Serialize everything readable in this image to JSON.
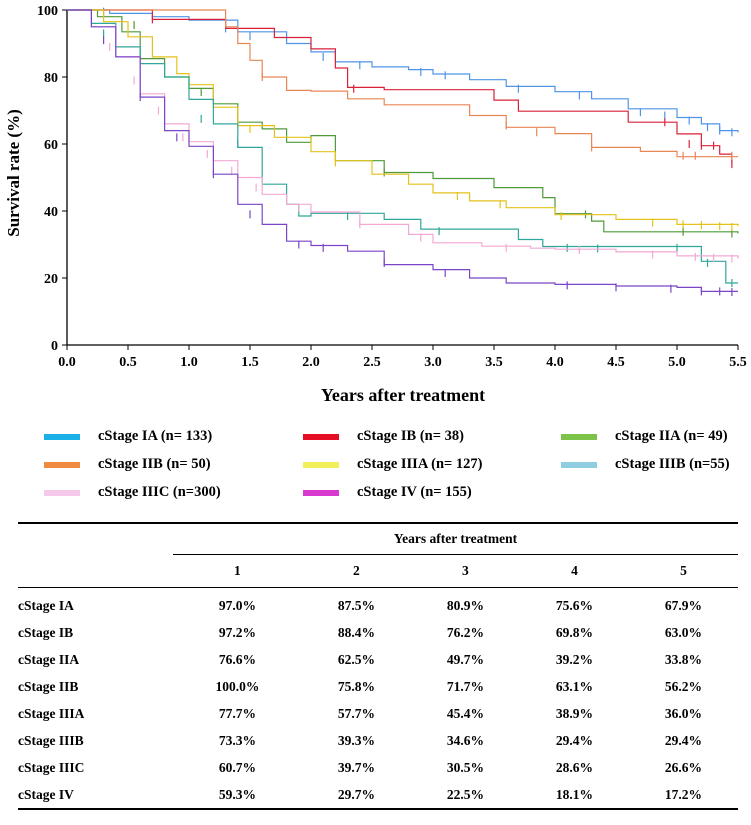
{
  "chart_data": {
    "type": "line",
    "subtype": "kaplan-meier",
    "xlabel": "Years after treatment",
    "ylabel": "Survival rate (%)",
    "xlim": [
      0,
      5.5
    ],
    "ylim": [
      0,
      100
    ],
    "xticks": [
      "0.0",
      "0.5",
      "1.0",
      "1.5",
      "2.0",
      "2.5",
      "3.0",
      "3.5",
      "4.0",
      "4.5",
      "5.0",
      "5.5"
    ],
    "yticks": [
      "0",
      "20",
      "40",
      "60",
      "80",
      "100"
    ],
    "grid": false,
    "series": [
      {
        "name": "cStage IA (n= 133)",
        "key": "IA",
        "color": "#4f94e6",
        "legend_color": "#1ab2e6",
        "points": [
          [
            0,
            100
          ],
          [
            0.35,
            99
          ],
          [
            0.7,
            98
          ],
          [
            1.0,
            97
          ],
          [
            1.4,
            93.5
          ],
          [
            1.8,
            90
          ],
          [
            2.0,
            87.5
          ],
          [
            2.2,
            84.5
          ],
          [
            2.5,
            83
          ],
          [
            2.8,
            82.2
          ],
          [
            3.0,
            80.9
          ],
          [
            3.3,
            79.2
          ],
          [
            3.6,
            77.2
          ],
          [
            4.0,
            75.6
          ],
          [
            4.3,
            73.5
          ],
          [
            4.6,
            70.5
          ],
          [
            5.0,
            67.9
          ],
          [
            5.2,
            66
          ],
          [
            5.35,
            64
          ],
          [
            5.5,
            63.5
          ]
        ],
        "censors": [
          [
            0.3,
            99.5
          ],
          [
            1.3,
            94.5
          ],
          [
            1.5,
            92.2
          ],
          [
            2.1,
            86
          ],
          [
            2.4,
            83.5
          ],
          [
            2.9,
            81.5
          ],
          [
            3.1,
            80.5
          ],
          [
            3.7,
            76.5
          ],
          [
            4.2,
            74.5
          ],
          [
            4.7,
            69.5
          ],
          [
            4.9,
            68.5
          ],
          [
            5.1,
            67
          ],
          [
            5.25,
            65
          ],
          [
            5.35,
            64
          ],
          [
            5.45,
            63.5
          ]
        ]
      },
      {
        "name": "cStage IB (n= 38)",
        "key": "IB",
        "color": "#d9223a",
        "legend_color": "#e60e22",
        "points": [
          [
            0,
            100
          ],
          [
            0.7,
            97.2
          ],
          [
            1.3,
            94.5
          ],
          [
            1.7,
            91.8
          ],
          [
            2.0,
            88.4
          ],
          [
            2.2,
            82.7
          ],
          [
            2.3,
            76.9
          ],
          [
            2.6,
            76.2
          ],
          [
            3.0,
            76.2
          ],
          [
            3.5,
            73.1
          ],
          [
            3.7,
            69.8
          ],
          [
            4.0,
            69.8
          ],
          [
            4.6,
            66.5
          ],
          [
            4.8,
            66.5
          ],
          [
            5.0,
            63
          ],
          [
            5.2,
            59.5
          ],
          [
            5.35,
            57
          ],
          [
            5.45,
            54
          ]
        ],
        "censors": [
          [
            0.7,
            97.2
          ],
          [
            2.35,
            76.5
          ],
          [
            4.9,
            66.5
          ],
          [
            5.1,
            60
          ],
          [
            5.2,
            59.5
          ],
          [
            5.3,
            59.5
          ],
          [
            5.45,
            54
          ]
        ]
      },
      {
        "name": "cStage IIA (n= 49)",
        "key": "IIA",
        "color": "#4f9a3a",
        "legend_color": "#7cc34a",
        "points": [
          [
            0,
            100
          ],
          [
            0.25,
            98
          ],
          [
            0.45,
            93.5
          ],
          [
            0.6,
            85.5
          ],
          [
            0.8,
            80
          ],
          [
            1.0,
            76.6
          ],
          [
            1.2,
            72
          ],
          [
            1.4,
            66.5
          ],
          [
            1.6,
            64.5
          ],
          [
            1.8,
            60.5
          ],
          [
            2.0,
            62.5
          ],
          [
            2.2,
            55
          ],
          [
            2.6,
            51.5
          ],
          [
            3.0,
            49.7
          ],
          [
            3.5,
            47
          ],
          [
            3.9,
            44
          ],
          [
            4.0,
            39.2
          ],
          [
            4.3,
            37
          ],
          [
            4.4,
            33.8
          ],
          [
            5.0,
            33.8
          ],
          [
            5.5,
            33.3
          ]
        ],
        "censors": [
          [
            0.55,
            95.5
          ],
          [
            1.1,
            75.5
          ],
          [
            2.6,
            51.5
          ],
          [
            4.25,
            39
          ],
          [
            5.05,
            33.8
          ],
          [
            5.45,
            33.3
          ]
        ]
      },
      {
        "name": "cStage IIB (n= 50)",
        "key": "IIB",
        "color": "#e88654",
        "legend_color": "#f08a3e",
        "points": [
          [
            0,
            100
          ],
          [
            0.8,
            100
          ],
          [
            1.0,
            100
          ],
          [
            1.3,
            95
          ],
          [
            1.4,
            90
          ],
          [
            1.5,
            85
          ],
          [
            1.6,
            80
          ],
          [
            1.8,
            76
          ],
          [
            2.0,
            75.8
          ],
          [
            2.3,
            73.5
          ],
          [
            2.6,
            71.7
          ],
          [
            3.0,
            71.7
          ],
          [
            3.3,
            68.5
          ],
          [
            3.6,
            65
          ],
          [
            4.0,
            63.1
          ],
          [
            4.3,
            59
          ],
          [
            4.7,
            57.8
          ],
          [
            5.0,
            56.2
          ],
          [
            5.5,
            56.2
          ]
        ],
        "censors": [
          [
            1.6,
            80
          ],
          [
            3.6,
            65.5
          ],
          [
            3.85,
            63.5
          ],
          [
            4.3,
            59
          ],
          [
            5.05,
            56.5
          ],
          [
            5.15,
            56.5
          ],
          [
            5.45,
            56.5
          ]
        ]
      },
      {
        "name": "cStage IIIA (n= 127)",
        "key": "IIIA",
        "color": "#e4c21a",
        "legend_color": "#f2f05a",
        "points": [
          [
            0,
            100
          ],
          [
            0.3,
            96.5
          ],
          [
            0.5,
            92
          ],
          [
            0.7,
            86
          ],
          [
            0.9,
            81
          ],
          [
            1.0,
            77.7
          ],
          [
            1.2,
            71
          ],
          [
            1.4,
            65.5
          ],
          [
            1.7,
            62
          ],
          [
            2.0,
            57.7
          ],
          [
            2.2,
            55
          ],
          [
            2.5,
            51
          ],
          [
            2.8,
            48
          ],
          [
            3.0,
            45.4
          ],
          [
            3.3,
            43
          ],
          [
            3.6,
            41
          ],
          [
            4.0,
            38.9
          ],
          [
            4.5,
            37.5
          ],
          [
            5.0,
            36
          ],
          [
            5.5,
            35.5
          ]
        ],
        "censors": [
          [
            1.5,
            64.5
          ],
          [
            2.2,
            54.5
          ],
          [
            3.2,
            44.5
          ],
          [
            3.55,
            42
          ],
          [
            4.05,
            38.5
          ],
          [
            4.8,
            36.5
          ],
          [
            5.05,
            36
          ],
          [
            5.2,
            35.8
          ],
          [
            5.35,
            35.5
          ],
          [
            5.45,
            35.2
          ]
        ]
      },
      {
        "name": "cStage IIIB (n=55)",
        "key": "IIIB",
        "color": "#2fa79a",
        "legend_color": "#8fcde0",
        "points": [
          [
            0,
            100
          ],
          [
            0.2,
            96
          ],
          [
            0.4,
            89
          ],
          [
            0.6,
            84
          ],
          [
            0.8,
            80
          ],
          [
            1.0,
            73.3
          ],
          [
            1.2,
            66
          ],
          [
            1.4,
            59
          ],
          [
            1.6,
            48
          ],
          [
            1.8,
            42
          ],
          [
            1.9,
            38.5
          ],
          [
            2.0,
            39.3
          ],
          [
            2.6,
            37.5
          ],
          [
            2.9,
            34.6
          ],
          [
            3.0,
            34.6
          ],
          [
            3.3,
            34.6
          ],
          [
            3.7,
            31.5
          ],
          [
            3.9,
            29.4
          ],
          [
            4.0,
            29.4
          ],
          [
            4.5,
            29.4
          ],
          [
            5.0,
            29.4
          ],
          [
            5.2,
            25
          ],
          [
            5.4,
            18.5
          ],
          [
            5.5,
            18.5
          ]
        ],
        "censors": [
          [
            0.3,
            93
          ],
          [
            1.1,
            67.5
          ],
          [
            1.4,
            60
          ],
          [
            2.3,
            38.5
          ],
          [
            3.05,
            34
          ],
          [
            4.1,
            29
          ],
          [
            4.35,
            28.8
          ],
          [
            5.0,
            29
          ],
          [
            5.25,
            24.5
          ],
          [
            5.45,
            18.5
          ]
        ]
      },
      {
        "name": "cStage IIIC (n=300)",
        "key": "IIIC",
        "color": "#f3a9d4",
        "legend_color": "#f6c8ea",
        "points": [
          [
            0,
            100
          ],
          [
            0.2,
            95
          ],
          [
            0.4,
            86
          ],
          [
            0.6,
            75
          ],
          [
            0.8,
            66
          ],
          [
            1.0,
            60.7
          ],
          [
            1.2,
            55
          ],
          [
            1.4,
            50
          ],
          [
            1.6,
            45
          ],
          [
            1.8,
            42
          ],
          [
            2.0,
            39.7
          ],
          [
            2.4,
            36
          ],
          [
            2.8,
            33
          ],
          [
            3.0,
            30.5
          ],
          [
            3.4,
            29.5
          ],
          [
            3.8,
            28.9
          ],
          [
            4.0,
            28.6
          ],
          [
            4.5,
            27.8
          ],
          [
            5.0,
            26.6
          ],
          [
            5.5,
            25.8
          ]
        ],
        "censors": [
          [
            0.35,
            89
          ],
          [
            0.55,
            79
          ],
          [
            0.75,
            70
          ],
          [
            0.95,
            62
          ],
          [
            1.15,
            57
          ],
          [
            1.35,
            52
          ],
          [
            1.55,
            47
          ],
          [
            1.9,
            41
          ],
          [
            2.4,
            36
          ],
          [
            2.9,
            32
          ],
          [
            3.6,
            29
          ],
          [
            4.2,
            28.4
          ],
          [
            4.8,
            27
          ],
          [
            5.15,
            26.3
          ],
          [
            5.3,
            26
          ],
          [
            5.45,
            25.8
          ]
        ]
      },
      {
        "name": "cStage IV (n= 155)",
        "key": "IV",
        "color": "#7a45c8",
        "legend_color": "#d83ad0",
        "points": [
          [
            0,
            100
          ],
          [
            0.2,
            95
          ],
          [
            0.4,
            86
          ],
          [
            0.6,
            74
          ],
          [
            0.8,
            64
          ],
          [
            1.0,
            59.3
          ],
          [
            1.2,
            51
          ],
          [
            1.4,
            42
          ],
          [
            1.6,
            36
          ],
          [
            1.8,
            31
          ],
          [
            2.0,
            29.7
          ],
          [
            2.3,
            28
          ],
          [
            2.6,
            24
          ],
          [
            3.0,
            22.5
          ],
          [
            3.3,
            20
          ],
          [
            3.6,
            18.5
          ],
          [
            4.0,
            18.1
          ],
          [
            4.5,
            17.6
          ],
          [
            5.0,
            17.2
          ],
          [
            5.2,
            16
          ],
          [
            5.5,
            16
          ]
        ],
        "censors": [
          [
            0.3,
            91
          ],
          [
            0.6,
            74
          ],
          [
            0.9,
            62
          ],
          [
            1.2,
            51
          ],
          [
            1.5,
            39
          ],
          [
            1.9,
            30
          ],
          [
            2.1,
            29
          ],
          [
            2.6,
            24.5
          ],
          [
            3.1,
            21.5
          ],
          [
            4.1,
            17.8
          ],
          [
            4.5,
            17.2
          ],
          [
            4.95,
            16.8
          ],
          [
            5.2,
            16
          ],
          [
            5.35,
            16
          ],
          [
            5.45,
            15.8
          ]
        ]
      }
    ]
  },
  "legend": {
    "items": [
      {
        "label": "cStage IA (n= 133)",
        "color": "#1ab2e6"
      },
      {
        "label": "cStage IB (n= 38)",
        "color": "#e60e22"
      },
      {
        "label": "cStage IIA (n= 49)",
        "color": "#7cc34a"
      },
      {
        "label": "cStage IIB (n= 50)",
        "color": "#f08a3e"
      },
      {
        "label": "cStage IIIA (n= 127)",
        "color": "#f2f05a"
      },
      {
        "label": "cStage IIIB (n=55)",
        "color": "#8fcde0"
      },
      {
        "label": "cStage IIIC (n=300)",
        "color": "#f6c8ea"
      },
      {
        "label": "cStage IV (n= 155)",
        "color": "#d83ad0"
      }
    ]
  },
  "table": {
    "group_header": "Years after treatment",
    "columns": [
      "1",
      "2",
      "3",
      "4",
      "5"
    ],
    "rows": [
      {
        "stage": "cStage IA",
        "values": [
          "97.0%",
          "87.5%",
          "80.9%",
          "75.6%",
          "67.9%"
        ]
      },
      {
        "stage": "cStage IB",
        "values": [
          "97.2%",
          "88.4%",
          "76.2%",
          "69.8%",
          "63.0%"
        ]
      },
      {
        "stage": "cStage IIA",
        "values": [
          "76.6%",
          "62.5%",
          "49.7%",
          "39.2%",
          "33.8%"
        ]
      },
      {
        "stage": "cStage IIB",
        "values": [
          "100.0%",
          "75.8%",
          "71.7%",
          "63.1%",
          "56.2%"
        ]
      },
      {
        "stage": "cStage IIIA",
        "values": [
          "77.7%",
          "57.7%",
          "45.4%",
          "38.9%",
          "36.0%"
        ]
      },
      {
        "stage": "cStage IIIB",
        "values": [
          "73.3%",
          "39.3%",
          "34.6%",
          "29.4%",
          "29.4%"
        ]
      },
      {
        "stage": "cStage IIIC",
        "values": [
          "60.7%",
          "39.7%",
          "30.5%",
          "28.6%",
          "26.6%"
        ]
      },
      {
        "stage": "cStage IV",
        "values": [
          "59.3%",
          "29.7%",
          "22.5%",
          "18.1%",
          "17.2%"
        ]
      }
    ]
  }
}
